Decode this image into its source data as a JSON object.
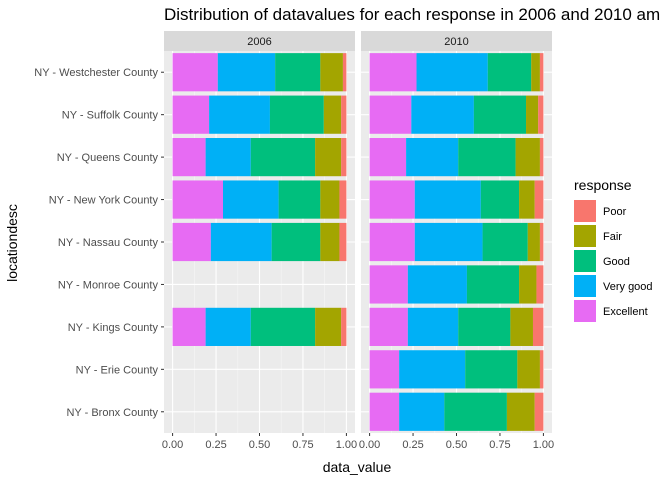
{
  "chart_data": {
    "type": "bar",
    "orientation": "horizontal",
    "stacked": true,
    "title": "Distribution of datavalues for each response in 2006 and 2010 am",
    "xlabel": "data_value",
    "ylabel": "locationdesc",
    "xlim": [
      0,
      1
    ],
    "x_ticks": [
      "0.00",
      "0.25",
      "0.50",
      "0.75",
      "1.00"
    ],
    "grid": true,
    "legend": {
      "title": "response",
      "placement": "right",
      "entries": [
        {
          "name": "Poor",
          "color": "#F8766D"
        },
        {
          "name": "Fair",
          "color": "#A3A500"
        },
        {
          "name": "Good",
          "color": "#00BF7D"
        },
        {
          "name": "Very good",
          "color": "#00B0F6"
        },
        {
          "name": "Excellent",
          "color": "#E76BF3"
        }
      ]
    },
    "stack_order": [
      "Excellent",
      "Very good",
      "Good",
      "Fair",
      "Poor"
    ],
    "categories": [
      "NY - Westchester County",
      "NY - Suffolk County",
      "NY - Queens County",
      "NY - New York County",
      "NY - Nassau County",
      "NY - Monroe County",
      "NY - Kings County",
      "NY - Erie County",
      "NY - Bronx County"
    ],
    "panels": [
      {
        "label": "2006",
        "bars": [
          {
            "category": "NY - Westchester County",
            "Excellent": 0.26,
            "Very good": 0.33,
            "Good": 0.26,
            "Fair": 0.13,
            "Poor": 0.02
          },
          {
            "category": "NY - Suffolk County",
            "Excellent": 0.21,
            "Very good": 0.35,
            "Good": 0.31,
            "Fair": 0.1,
            "Poor": 0.03
          },
          {
            "category": "NY - Queens County",
            "Excellent": 0.19,
            "Very good": 0.26,
            "Good": 0.37,
            "Fair": 0.15,
            "Poor": 0.03
          },
          {
            "category": "NY - New York County",
            "Excellent": 0.29,
            "Very good": 0.32,
            "Good": 0.24,
            "Fair": 0.11,
            "Poor": 0.04
          },
          {
            "category": "NY - Nassau County",
            "Excellent": 0.22,
            "Very good": 0.35,
            "Good": 0.28,
            "Fair": 0.11,
            "Poor": 0.04
          },
          {
            "category": "NY - Kings County",
            "Excellent": 0.19,
            "Very good": 0.26,
            "Good": 0.37,
            "Fair": 0.15,
            "Poor": 0.03
          }
        ]
      },
      {
        "label": "2010",
        "bars": [
          {
            "category": "NY - Westchester County",
            "Excellent": 0.27,
            "Very good": 0.41,
            "Good": 0.25,
            "Fair": 0.05,
            "Poor": 0.02
          },
          {
            "category": "NY - Suffolk County",
            "Excellent": 0.24,
            "Very good": 0.36,
            "Good": 0.3,
            "Fair": 0.07,
            "Poor": 0.03
          },
          {
            "category": "NY - Queens County",
            "Excellent": 0.21,
            "Very good": 0.3,
            "Good": 0.33,
            "Fair": 0.14,
            "Poor": 0.02
          },
          {
            "category": "NY - New York County",
            "Excellent": 0.26,
            "Very good": 0.38,
            "Good": 0.22,
            "Fair": 0.09,
            "Poor": 0.05
          },
          {
            "category": "NY - Nassau County",
            "Excellent": 0.26,
            "Very good": 0.39,
            "Good": 0.26,
            "Fair": 0.07,
            "Poor": 0.02
          },
          {
            "category": "NY - Monroe County",
            "Excellent": 0.22,
            "Very good": 0.34,
            "Good": 0.3,
            "Fair": 0.1,
            "Poor": 0.04
          },
          {
            "category": "NY - Kings County",
            "Excellent": 0.22,
            "Very good": 0.29,
            "Good": 0.3,
            "Fair": 0.13,
            "Poor": 0.06
          },
          {
            "category": "NY - Erie County",
            "Excellent": 0.17,
            "Very good": 0.38,
            "Good": 0.3,
            "Fair": 0.13,
            "Poor": 0.02
          },
          {
            "category": "NY - Bronx County",
            "Excellent": 0.17,
            "Very good": 0.26,
            "Good": 0.36,
            "Fair": 0.16,
            "Poor": 0.05
          }
        ]
      }
    ]
  }
}
